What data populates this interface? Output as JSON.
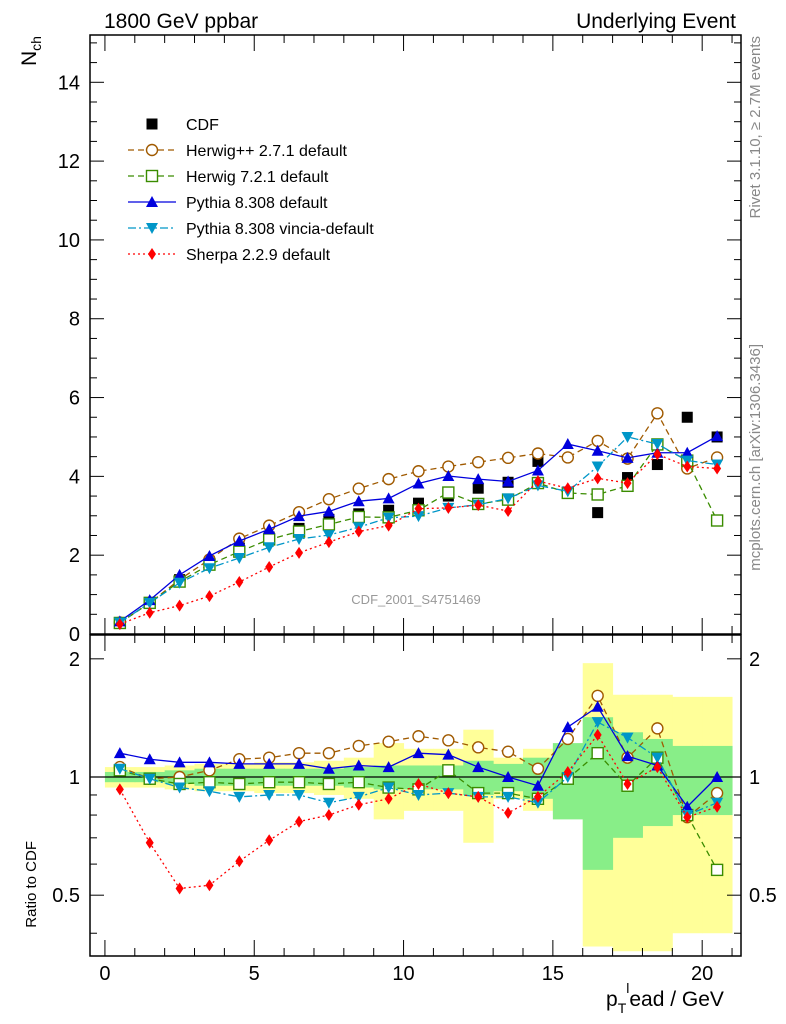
{
  "header": {
    "left": "1800 GeV ppbar",
    "right": "Underlying Event"
  },
  "side_labels": {
    "rivet": "Rivet 3.1.10, ≥ 2.7M events",
    "mcplots": "mcplots.cern.ch [arXiv:1306.3436]"
  },
  "watermark": "CDF_2001_S4751469",
  "axes": {
    "ylabel_main": "N",
    "ylabel_main_sub": "ch",
    "ylabel_ratio": "Ratio to CDF",
    "xlabel_p": "p",
    "xlabel_sub": "T",
    "xlabel_sup": "l",
    "xlabel_rest": "ead / GeV",
    "main_yticks": [
      "0",
      "2",
      "4",
      "6",
      "8",
      "10",
      "12",
      "14"
    ],
    "ratio_yticks": [
      "0.5",
      "1",
      "2"
    ],
    "xticks": [
      "0",
      "5",
      "10",
      "15",
      "20"
    ]
  },
  "chart_data": {
    "type": "scatter",
    "xlim": [
      -0.5,
      21.3
    ],
    "ylim": [
      0,
      15.2
    ],
    "ratio_ylim": [
      0.35,
      2.3
    ],
    "ratio_scale": "log",
    "grid": false,
    "legend_position": "top-left",
    "x": [
      0.5,
      1.5,
      2.5,
      3.5,
      4.5,
      5.5,
      6.5,
      7.5,
      8.5,
      9.5,
      10.5,
      11.5,
      12.5,
      13.5,
      14.5,
      15.5,
      16.5,
      17.5,
      18.5,
      19.5,
      20.5
    ],
    "series": [
      {
        "name": "CDF",
        "color": "#000000",
        "marker": "square-filled",
        "line": "none",
        "values": [
          0.27,
          0.8,
          1.38,
          1.82,
          2.18,
          2.46,
          2.68,
          2.91,
          3.05,
          3.14,
          3.32,
          3.5,
          3.7,
          3.85,
          4.38,
          3.6,
          3.08,
          3.97,
          4.3,
          5.5,
          5.0
        ]
      },
      {
        "name": "Herwig++ 2.7.1 default",
        "color": "#a05a00",
        "marker": "circle-open",
        "line": "dashed",
        "values": [
          0.29,
          0.79,
          1.38,
          1.89,
          2.42,
          2.75,
          3.09,
          3.42,
          3.69,
          3.93,
          4.13,
          4.25,
          4.36,
          4.47,
          4.58,
          4.48,
          4.9,
          4.45,
          5.6,
          4.2,
          4.48
        ]
      },
      {
        "name": "Herwig 7.2.1 default",
        "color": "#3a8c00",
        "marker": "square-open",
        "line": "dashed",
        "values": [
          0.28,
          0.79,
          1.33,
          1.76,
          2.09,
          2.4,
          2.6,
          2.78,
          2.97,
          2.96,
          3.14,
          3.59,
          3.3,
          3.41,
          3.83,
          3.58,
          3.54,
          3.76,
          4.81,
          4.4,
          2.88
        ]
      },
      {
        "name": "Pythia 8.308 default",
        "color": "#0000dd",
        "marker": "triangle-up",
        "line": "solid",
        "values": [
          0.32,
          0.86,
          1.5,
          1.98,
          2.36,
          2.66,
          2.99,
          3.11,
          3.37,
          3.44,
          3.82,
          4.01,
          3.93,
          3.87,
          4.15,
          4.82,
          4.65,
          4.47,
          4.6,
          4.6,
          5.02
        ]
      },
      {
        "name": "Pythia 8.308 vincia-default",
        "color": "#0096c8",
        "marker": "triangle-down",
        "line": "dashdot",
        "values": [
          0.29,
          0.79,
          1.3,
          1.67,
          1.93,
          2.2,
          2.41,
          2.51,
          2.71,
          2.95,
          2.99,
          3.2,
          3.28,
          3.44,
          3.77,
          3.62,
          4.25,
          5.0,
          4.82,
          4.4,
          4.3
        ]
      },
      {
        "name": "Sherpa 2.2.9 default",
        "color": "#ff0000",
        "marker": "diamond",
        "line": "dotted",
        "values": [
          0.25,
          0.54,
          0.72,
          0.96,
          1.32,
          1.7,
          2.06,
          2.33,
          2.6,
          2.75,
          3.18,
          3.2,
          3.27,
          3.12,
          3.88,
          3.7,
          3.95,
          3.83,
          4.56,
          4.25,
          4.2
        ]
      }
    ],
    "ratio": {
      "reference": "CDF",
      "series": [
        {
          "name": "Herwig++ 2.7.1 default",
          "values": [
            1.06,
            0.99,
            1.0,
            1.04,
            1.11,
            1.12,
            1.15,
            1.15,
            1.2,
            1.23,
            1.27,
            1.24,
            1.19,
            1.16,
            1.05,
            1.25,
            1.61,
            1.12,
            1.33,
            0.79,
            0.91
          ]
        },
        {
          "name": "Herwig 7.2.1 default",
          "values": [
            1.04,
            0.99,
            0.96,
            0.97,
            0.96,
            0.97,
            0.97,
            0.96,
            0.97,
            0.94,
            0.93,
            1.04,
            0.91,
            0.91,
            0.88,
            0.99,
            1.15,
            0.95,
            1.12,
            0.8,
            0.58
          ]
        },
        {
          "name": "Pythia 8.308 default",
          "values": [
            1.15,
            1.11,
            1.09,
            1.09,
            1.08,
            1.08,
            1.08,
            1.05,
            1.07,
            1.06,
            1.15,
            1.14,
            1.06,
            1.0,
            0.95,
            1.34,
            1.51,
            1.13,
            1.07,
            0.84,
            1.0
          ]
        },
        {
          "name": "Pythia 8.308 vincia-default",
          "values": [
            1.05,
            0.99,
            0.94,
            0.92,
            0.89,
            0.9,
            0.9,
            0.86,
            0.89,
            0.94,
            0.9,
            0.91,
            0.89,
            0.89,
            0.86,
            1.0,
            1.38,
            1.26,
            1.12,
            0.8,
            0.86
          ]
        },
        {
          "name": "Sherpa 2.2.9 default",
          "values": [
            0.93,
            0.68,
            0.52,
            0.53,
            0.61,
            0.69,
            0.77,
            0.8,
            0.85,
            0.88,
            0.96,
            0.91,
            0.89,
            0.81,
            0.89,
            1.03,
            1.28,
            0.96,
            1.06,
            0.79,
            0.84
          ]
        }
      ],
      "band_green": [
        [
          0.97,
          1.03
        ],
        [
          0.97,
          1.03
        ],
        [
          0.96,
          1.04
        ],
        [
          0.95,
          1.05
        ],
        [
          0.95,
          1.05
        ],
        [
          0.95,
          1.05
        ],
        [
          0.95,
          1.05
        ],
        [
          0.95,
          1.05
        ],
        [
          0.94,
          1.06
        ],
        [
          0.93,
          1.07
        ],
        [
          0.93,
          1.07
        ],
        [
          0.93,
          1.07
        ],
        [
          0.9,
          1.1
        ],
        [
          0.92,
          1.08
        ],
        [
          0.88,
          1.12
        ],
        [
          0.78,
          1.22
        ],
        [
          0.58,
          1.42
        ],
        [
          0.7,
          1.3
        ],
        [
          0.75,
          1.25
        ],
        [
          0.8,
          1.2
        ],
        [
          0.8,
          1.2
        ]
      ],
      "band_yellow": [
        [
          0.94,
          1.06
        ],
        [
          0.94,
          1.06
        ],
        [
          0.93,
          1.07
        ],
        [
          0.92,
          1.08
        ],
        [
          0.92,
          1.08
        ],
        [
          0.91,
          1.09
        ],
        [
          0.91,
          1.09
        ],
        [
          0.9,
          1.1
        ],
        [
          0.88,
          1.12
        ],
        [
          0.78,
          1.22
        ],
        [
          0.82,
          1.18
        ],
        [
          0.82,
          1.18
        ],
        [
          0.68,
          1.32
        ],
        [
          0.88,
          1.12
        ],
        [
          0.82,
          1.18
        ],
        [
          0.8,
          1.2
        ],
        [
          0.37,
          1.95
        ],
        [
          0.36,
          1.62
        ],
        [
          0.36,
          1.62
        ],
        [
          0.4,
          1.6
        ],
        [
          0.4,
          1.6
        ]
      ]
    }
  }
}
